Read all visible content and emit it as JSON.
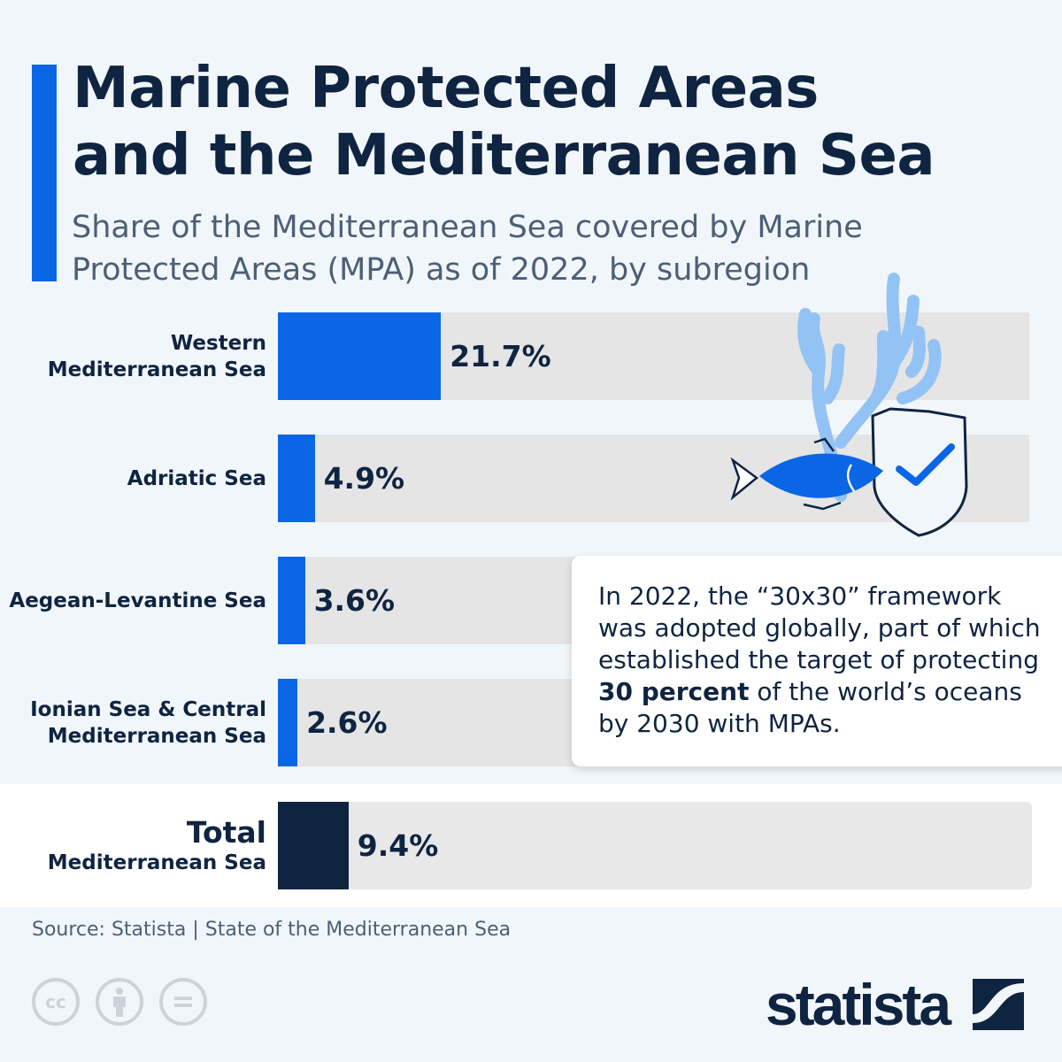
{
  "header": {
    "title_line1": "Marine Protected Areas",
    "title_line2": "and the Mediterranean Sea",
    "subtitle": "Share of the Mediterranean Sea covered by Marine Protected Areas (MPA) as of 2022, by subregion"
  },
  "chart_data": {
    "type": "bar",
    "orientation": "horizontal",
    "categories": [
      "Western Mediterranean Sea",
      "Adriatic Sea",
      "Aegean-Levantine Sea",
      "Ionian Sea & Central Mediterranean Sea",
      "Total Mediterranean Sea"
    ],
    "values": [
      21.7,
      4.9,
      3.6,
      2.6,
      9.4
    ],
    "value_labels": [
      "21.7%",
      "4.9%",
      "3.6%",
      "2.6%",
      "9.4%"
    ],
    "unit": "%",
    "xlim": [
      0,
      100
    ],
    "colors": {
      "subregion": "#0a66e4",
      "total": "#0f2441",
      "track": "#e5e5e5"
    }
  },
  "labels": {
    "r0": [
      "Western",
      "Mediterranean Sea"
    ],
    "r1": [
      "Adriatic Sea"
    ],
    "r2": [
      "Aegean-Levantine Sea"
    ],
    "r3": [
      "Ionian Sea & Central",
      "Mediterranean Sea"
    ],
    "r4": [
      "Total",
      "Mediterranean Sea"
    ]
  },
  "callout": {
    "text_before": "In 2022, the “30x30” framework was adopted globally, part of which established the target of protecting ",
    "bold": "30 percent",
    "text_after": " of the world’s oceans by 2030 with MPAs."
  },
  "footer": {
    "source": "Source: Statista | State of the Mediterranean Sea",
    "cc_icons": [
      "cc-icon",
      "by-icon",
      "nd-icon"
    ],
    "cc_label": "cc",
    "logo": "statista"
  }
}
